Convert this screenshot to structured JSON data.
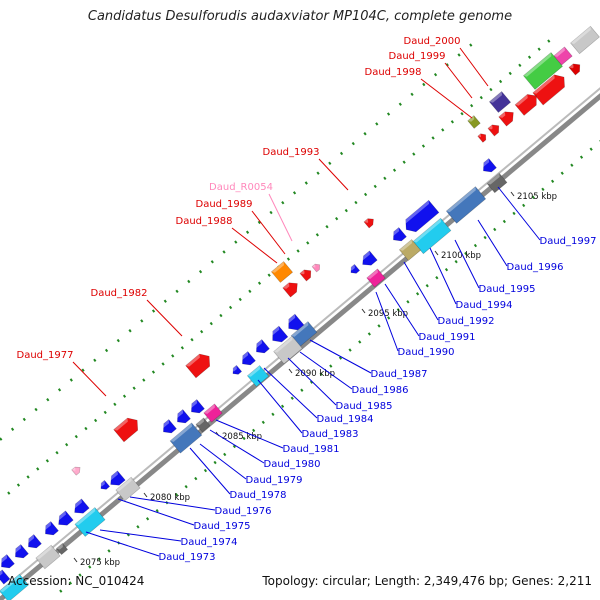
{
  "title": "Candidatus Desulforudis audaxviator MP104C, complete genome",
  "footer": {
    "accession": "Accession: NC_010424",
    "topology": "Topology: circular; Length: 2,349,476 bp; Genes: 2,211"
  },
  "colors": {
    "backbone": "#999999",
    "top_labels": "#dd0000",
    "rna_label": "#ff88bb",
    "bottom_labels": "#0000dd",
    "tick_dots": "#228822"
  },
  "scale_labels": [
    "2075 kbp",
    "2080 kbp",
    "2085 kbp",
    "2090 kbp",
    "2095 kbp",
    "2100 kbp",
    "2105 kbp"
  ],
  "top_genes": [
    {
      "label": "Daud_2000"
    },
    {
      "label": "Daud_1999"
    },
    {
      "label": "Daud_1998"
    },
    {
      "label": "Daud_1993"
    },
    {
      "label": "Daud_R0054"
    },
    {
      "label": "Daud_1989"
    },
    {
      "label": "Daud_1988"
    },
    {
      "label": "Daud_1982"
    },
    {
      "label": "Daud_1977"
    }
  ],
  "bottom_genes": [
    {
      "label": "Daud_1997"
    },
    {
      "label": "Daud_1996"
    },
    {
      "label": "Daud_1995"
    },
    {
      "label": "Daud_1994"
    },
    {
      "label": "Daud_1992"
    },
    {
      "label": "Daud_1991"
    },
    {
      "label": "Daud_1990"
    },
    {
      "label": "Daud_1987"
    },
    {
      "label": "Daud_1986"
    },
    {
      "label": "Daud_1985"
    },
    {
      "label": "Daud_1984"
    },
    {
      "label": "Daud_1983"
    },
    {
      "label": "Daud_1981"
    },
    {
      "label": "Daud_1980"
    },
    {
      "label": "Daud_1979"
    },
    {
      "label": "Daud_1978"
    },
    {
      "label": "Daud_1976"
    },
    {
      "label": "Daud_1975"
    },
    {
      "label": "Daud_1974"
    },
    {
      "label": "Daud_1973"
    }
  ]
}
